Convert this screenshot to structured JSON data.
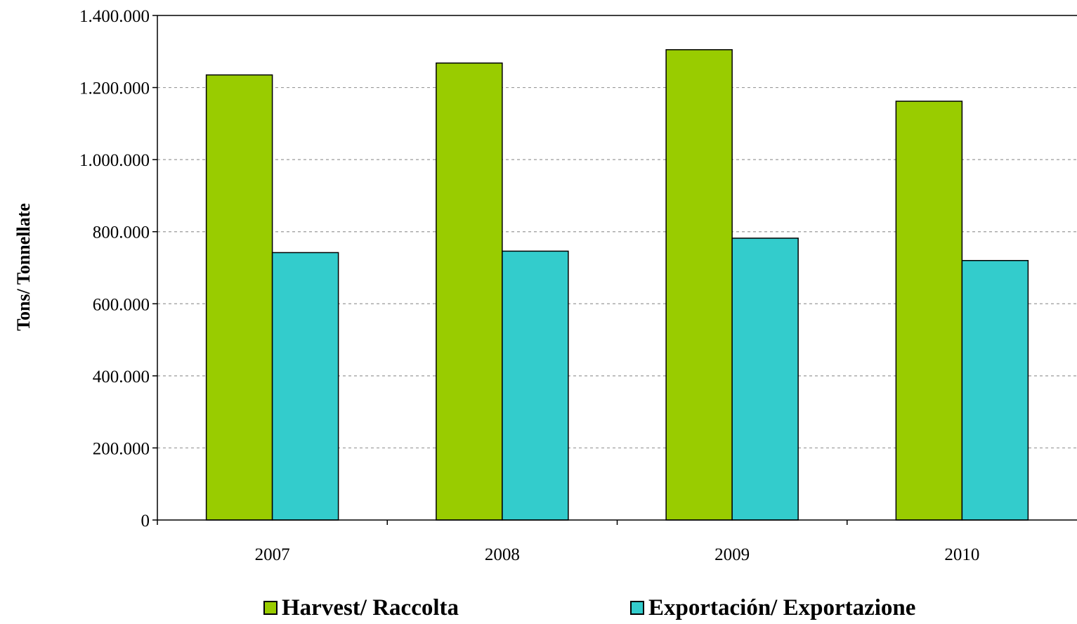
{
  "chart_data": {
    "type": "bar",
    "categories": [
      "2007",
      "2008",
      "2009",
      "2010"
    ],
    "series": [
      {
        "name": "Harvest/ Raccolta",
        "color": "#99CC00",
        "values": [
          1235000,
          1268000,
          1305000,
          1162000
        ]
      },
      {
        "name": "Exportación/ Exportazione",
        "color": "#33CCCC",
        "values": [
          742000,
          746000,
          782000,
          720000
        ]
      }
    ],
    "title": "",
    "xlabel": "",
    "ylabel": "Tons/ Tonnellate",
    "ylim": [
      0,
      1400000
    ],
    "yticks": [
      0,
      200000,
      400000,
      600000,
      800000,
      1000000,
      1200000,
      1400000
    ],
    "ytick_labels": [
      "0",
      "200.000",
      "400.000",
      "600.000",
      "800.000",
      "1.000.000",
      "1.200.000",
      "1.400.000"
    ],
    "grid": true,
    "legend_position": "bottom"
  }
}
